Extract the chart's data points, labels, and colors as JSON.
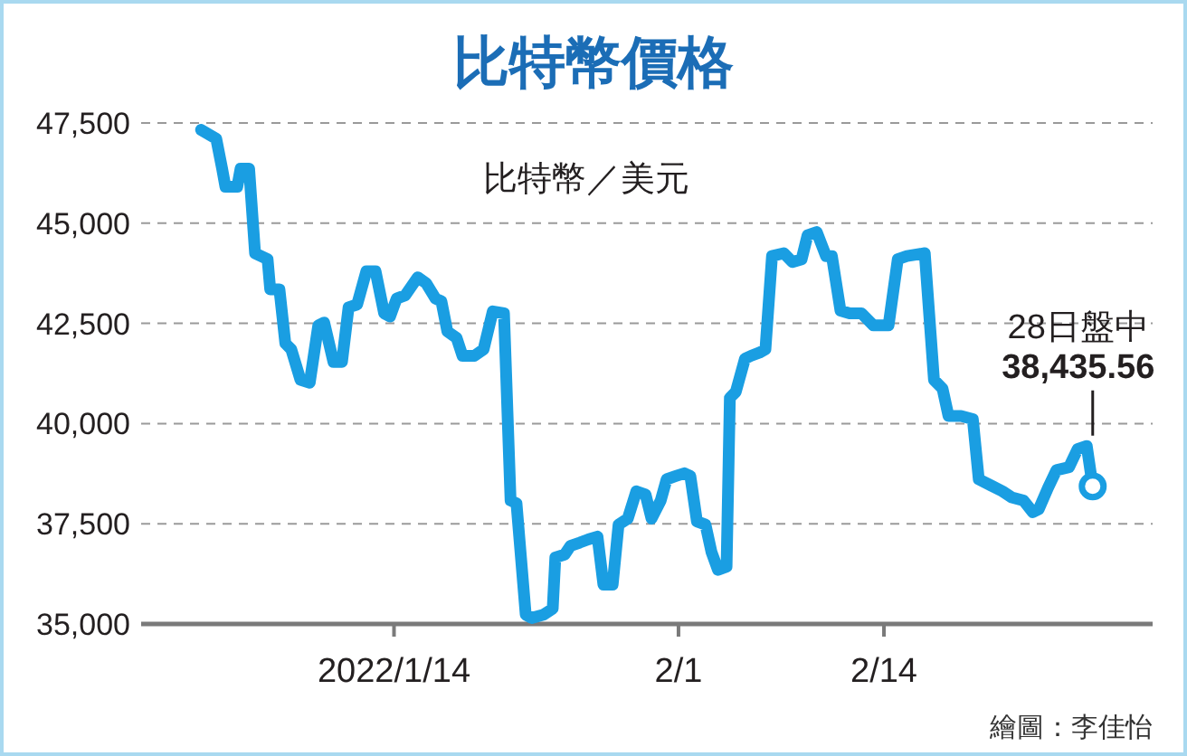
{
  "chart_data": {
    "type": "line",
    "title": "比特幣價格",
    "ylabel": "比特幣／美元",
    "x": [
      "2022-01-01T19:00",
      "2022-01-02T18:00",
      "2022-01-03T03:00",
      "2022-01-03T08:00",
      "2022-01-04T02:00",
      "2022-01-04T07:00",
      "2022-01-04T20:00",
      "2022-01-05T05:00",
      "2022-01-06T00:00",
      "2022-01-06T04:00",
      "2022-01-06T18:00",
      "2022-01-07T03:00",
      "2022-01-07T12:00",
      "2022-01-08T02:00",
      "2022-01-08T16:00",
      "2022-01-09T05:00",
      "2022-01-09T14:00",
      "2022-01-10T04:00",
      "2022-01-10T17:00",
      "2022-01-11T03:00",
      "2022-01-11T16:00",
      "2022-01-12T06:00",
      "2022-01-12T20:00",
      "2022-01-13T09:00",
      "2022-01-13T18:00",
      "2022-01-14T04:00",
      "2022-01-14T17:00",
      "2022-01-15T12:00",
      "2022-01-16T01:00",
      "2022-01-16T15:00",
      "2022-01-17T00:00",
      "2022-01-17T09:00",
      "2022-01-17T23:00",
      "2022-01-18T08:00",
      "2022-01-19T02:00",
      "2022-01-19T16:00",
      "2022-01-20T06:00",
      "2022-01-20T23:00",
      "2022-01-21T09:00",
      "2022-01-21T18:00",
      "2022-01-22T08:00",
      "2022-01-22T17:00",
      "2022-01-23T11:00",
      "2022-01-24T01:00",
      "2022-01-24T05:00",
      "2022-01-24T19:00",
      "2022-01-25T04:00",
      "2022-01-25T18:00",
      "2022-01-26T07:00",
      "2022-01-26T21:00",
      "2022-01-27T06:00",
      "2022-01-27T20:00",
      "2022-01-28T05:00",
      "2022-01-28T19:00",
      "2022-01-29T08:00",
      "2022-01-29T22:00",
      "2022-01-30T07:00",
      "2022-01-30T21:00",
      "2022-01-31T06:00",
      "2022-01-31T20:00",
      "2022-02-01T09:00",
      "2022-02-01T18:00",
      "2022-02-02T04:00",
      "2022-02-02T17:00",
      "2022-02-03T02:00",
      "2022-02-03T12:00",
      "2022-02-04T01:00",
      "2022-02-04T06:00",
      "2022-02-04T15:00",
      "2022-02-05T05:00",
      "2022-02-05T14:00",
      "2022-02-06T03:00",
      "2022-02-06T12:00",
      "2022-02-06T22:00",
      "2022-02-07T16:00",
      "2022-02-08T05:00",
      "2022-02-08T19:00",
      "2022-02-09T04:00",
      "2022-02-09T18:00",
      "2022-02-10T08:00",
      "2022-02-10T17:00",
      "2022-02-11T06:00",
      "2022-02-11T20:00",
      "2022-02-12T14:00",
      "2022-02-13T08:00",
      "2022-02-14T07:00",
      "2022-02-14T21:00",
      "2022-02-15T11:00",
      "2022-02-16T14:00",
      "2022-02-17T04:00",
      "2022-02-17T17:00",
      "2022-02-18T02:00",
      "2022-02-18T21:00",
      "2022-02-19T15:00",
      "2022-02-20T00:00",
      "2022-02-20T18:00",
      "2022-02-21T12:00",
      "2022-02-22T02:00",
      "2022-02-22T20:00",
      "2022-02-23T10:00",
      "2022-02-23T19:00",
      "2022-02-24T09:00",
      "2022-02-24T22:00",
      "2022-02-25T17:00",
      "2022-02-26T06:00",
      "2022-02-26T20:00",
      "2022-02-27T05:00"
    ],
    "values": [
      47330,
      47110,
      46360,
      45910,
      45910,
      46360,
      46360,
      44250,
      44100,
      43350,
      43350,
      42000,
      41850,
      41090,
      41020,
      42450,
      42520,
      41540,
      41540,
      42900,
      42970,
      43800,
      43800,
      42750,
      42670,
      43120,
      43200,
      43650,
      43500,
      43120,
      43050,
      42300,
      42140,
      41690,
      41690,
      41850,
      42800,
      42750,
      38080,
      38010,
      35230,
      35150,
      35230,
      35380,
      36660,
      36730,
      36950,
      37030,
      37110,
      37180,
      35980,
      35980,
      37480,
      37630,
      38310,
      38230,
      37630,
      38080,
      38610,
      38690,
      38760,
      38690,
      37560,
      37480,
      36800,
      36350,
      36430,
      40640,
      40790,
      41620,
      41690,
      41770,
      41850,
      44180,
      44250,
      44030,
      44100,
      44700,
      44780,
      44180,
      44180,
      42820,
      42750,
      42750,
      42450,
      42450,
      44100,
      44180,
      44250,
      41090,
      40870,
      40190,
      40190,
      40110,
      38610,
      38460,
      38310,
      38160,
      38080,
      37790,
      37860,
      38390,
      38840,
      38910,
      39360,
      39440,
      38435.56
    ],
    "color": "#1a9ee2",
    "xlim": [
      "2021-12-29",
      "2022-03-03"
    ],
    "xticks": [
      {
        "value": "2022-01-14",
        "label": "2022/1/14"
      },
      {
        "value": "2022-02-01",
        "label": "2/1"
      },
      {
        "value": "2022-02-14",
        "label": "2/14"
      }
    ],
    "ylim": [
      35000,
      47500
    ],
    "yticks": [
      {
        "value": 35000,
        "label": "35,000"
      },
      {
        "value": 37500,
        "label": "37,500"
      },
      {
        "value": 40000,
        "label": "40,000"
      },
      {
        "value": 42500,
        "label": "42,500"
      },
      {
        "value": 45000,
        "label": "45,000"
      },
      {
        "value": 47500,
        "label": "47,500"
      }
    ],
    "grid": "y",
    "annotations": [
      {
        "text": "28日盤中\n**38,435.56**",
        "x": "2022-02-27T05:00",
        "y": 38435.56
      },
      "繪圖：李佳怡"
    ]
  }
}
